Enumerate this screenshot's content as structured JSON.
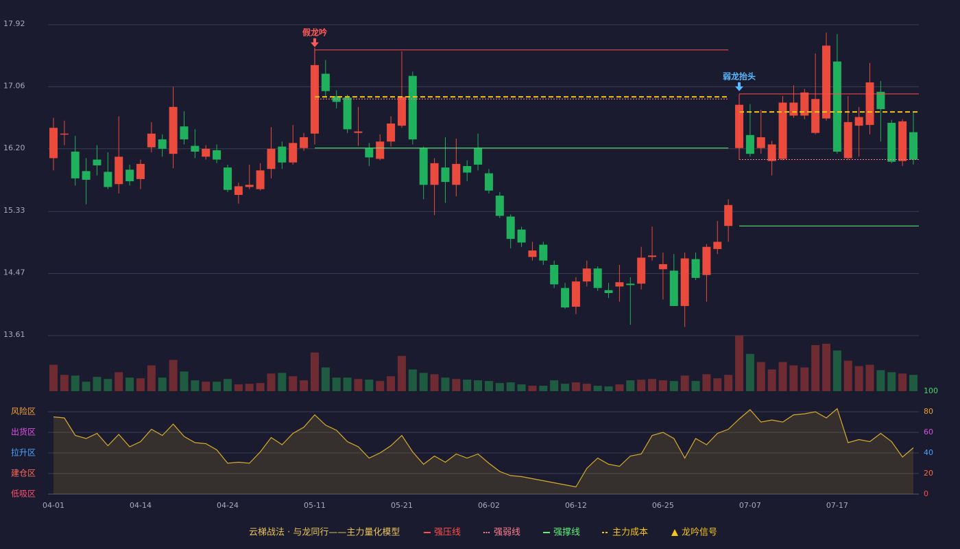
{
  "chart_data": {
    "type": "candlestick",
    "categories": [
      "04-01",
      null,
      null,
      null,
      null,
      null,
      null,
      null,
      "04-14",
      null,
      null,
      null,
      null,
      null,
      null,
      null,
      "04-24",
      null,
      null,
      null,
      null,
      null,
      null,
      null,
      "05-11",
      null,
      null,
      null,
      null,
      null,
      null,
      null,
      "05-21",
      null,
      null,
      null,
      null,
      null,
      null,
      null,
      "06-02",
      null,
      null,
      null,
      null,
      null,
      null,
      null,
      "06-12",
      null,
      null,
      null,
      null,
      null,
      null,
      null,
      "06-25",
      null,
      null,
      null,
      null,
      null,
      null,
      null,
      "07-07",
      null,
      null,
      null,
      null,
      null,
      null,
      null,
      "07-17",
      null,
      null,
      null,
      null,
      null,
      null,
      null
    ],
    "open": [
      16.07,
      16.4,
      16.16,
      15.89,
      16.05,
      15.88,
      15.71,
      15.91,
      15.78,
      16.22,
      16.33,
      16.13,
      16.51,
      16.24,
      16.09,
      16.18,
      15.94,
      15.56,
      15.67,
      15.64,
      15.92,
      16.23,
      16.01,
      16.21,
      16.41,
      17.24,
      16.93,
      16.91,
      16.42,
      16.21,
      16.06,
      16.3,
      16.52,
      17.21,
      16.21,
      15.7,
      15.94,
      15.7,
      15.96,
      16.21,
      15.86,
      15.55,
      15.26,
      15.08,
      14.7,
      14.87,
      14.59,
      14.27,
      14.01,
      14.36,
      14.54,
      14.24,
      14.29,
      14.33,
      14.33,
      14.7,
      14.53,
      14.51,
      14.02,
      14.67,
      14.45,
      14.81,
      15.13,
      16.21,
      16.39,
      16.21,
      16.03,
      16.06,
      16.66,
      16.66,
      16.42,
      16.62,
      17.41,
      16.07,
      16.52,
      16.53,
      16.99,
      16.56,
      16.03,
      16.43
    ],
    "high": [
      16.63,
      16.59,
      16.38,
      16.07,
      16.25,
      16.15,
      16.65,
      15.98,
      16.05,
      16.57,
      16.4,
      17.06,
      16.72,
      16.47,
      16.25,
      16.26,
      15.98,
      15.73,
      15.98,
      16.0,
      16.5,
      16.3,
      16.53,
      16.42,
      17.6,
      17.43,
      17.01,
      16.95,
      16.78,
      16.28,
      16.4,
      16.65,
      17.55,
      17.27,
      16.23,
      16.07,
      16.36,
      16.34,
      16.04,
      16.41,
      15.92,
      15.6,
      15.29,
      15.12,
      14.91,
      14.91,
      14.65,
      14.34,
      14.42,
      14.65,
      14.57,
      14.34,
      14.59,
      14.42,
      14.84,
      15.12,
      14.76,
      14.74,
      14.76,
      14.76,
      14.88,
      15.2,
      15.5,
      16.82,
      16.82,
      16.74,
      16.31,
      16.93,
      17.08,
      17.03,
      17.52,
      17.81,
      17.79,
      16.93,
      16.78,
      17.39,
      17.14,
      16.6,
      16.61,
      16.7
    ],
    "low": [
      15.9,
      16.25,
      15.69,
      15.43,
      15.83,
      15.64,
      15.58,
      15.69,
      15.64,
      16.15,
      16.09,
      15.93,
      16.26,
      16.07,
      16.05,
      16.0,
      15.6,
      15.44,
      15.64,
      15.62,
      15.79,
      15.92,
      15.98,
      16.17,
      16.26,
      16.93,
      16.76,
      16.42,
      16.24,
      15.96,
      16.04,
      16.23,
      16.49,
      16.26,
      15.5,
      15.28,
      15.45,
      15.54,
      15.75,
      15.9,
      15.58,
      15.24,
      14.82,
      14.84,
      14.65,
      14.59,
      14.27,
      13.98,
      13.91,
      14.29,
      14.23,
      14.13,
      14.08,
      13.76,
      14.25,
      14.65,
      14.11,
      14.02,
      13.73,
      14.38,
      14.08,
      14.74,
      14.91,
      16.15,
      16.09,
      16.13,
      15.83,
      16.04,
      16.63,
      16.61,
      16.4,
      16.59,
      16.13,
      16.05,
      16.09,
      16.4,
      16.3,
      16.0,
      15.96,
      15.98
    ],
    "close": [
      16.49,
      16.41,
      15.79,
      15.77,
      15.97,
      15.67,
      16.09,
      15.75,
      15.99,
      16.41,
      16.2,
      16.78,
      16.33,
      16.16,
      16.2,
      16.05,
      15.63,
      15.68,
      15.7,
      15.9,
      16.2,
      16.01,
      16.28,
      16.36,
      17.36,
      17.0,
      16.85,
      16.47,
      16.44,
      16.08,
      16.3,
      16.55,
      16.92,
      16.33,
      15.7,
      16.0,
      15.74,
      15.99,
      15.87,
      15.98,
      15.62,
      15.27,
      14.95,
      14.9,
      14.79,
      14.65,
      14.32,
      14.0,
      14.36,
      14.54,
      14.27,
      14.2,
      14.35,
      14.31,
      14.69,
      14.72,
      14.6,
      14.02,
      14.68,
      14.41,
      14.84,
      14.91,
      15.42,
      16.81,
      16.13,
      16.36,
      16.26,
      16.84,
      16.84,
      16.98,
      16.89,
      17.63,
      16.16,
      16.57,
      16.64,
      17.12,
      16.75,
      16.02,
      16.58,
      16.05
    ],
    "up_color": "#eb4b3d",
    "down_color": "#20b15e",
    "volume_up_color": "#6e2b31",
    "volume_down_color": "#1f5b40",
    "volume": [
      39,
      24,
      23,
      14,
      21,
      18,
      28,
      20,
      19,
      38,
      20,
      46,
      29,
      16,
      14,
      14,
      18,
      10,
      11,
      12,
      26,
      27,
      22,
      16,
      57,
      35,
      20,
      20,
      18,
      17,
      15,
      22,
      52,
      32,
      27,
      25,
      20,
      18,
      17,
      16,
      15,
      12,
      13,
      10,
      8,
      8,
      16,
      11,
      13,
      11,
      8,
      7,
      10,
      16,
      17,
      18,
      16,
      15,
      23,
      15,
      25,
      19,
      24,
      82,
      55,
      43,
      32,
      43,
      38,
      35,
      68,
      70,
      60,
      45,
      37,
      39,
      31,
      28,
      26,
      24
    ],
    "ylim": [
      13.61,
      17.92
    ],
    "yticks": [
      13.61,
      14.47,
      15.33,
      {
        "value": 16.2,
        "label": "16.20"
      },
      17.06,
      17.92
    ],
    "grid": true,
    "levels": [
      {
        "name": "强压线",
        "color": "#ff4d4d",
        "style": "solid",
        "segments": [
          {
            "start": 24,
            "end": 62,
            "value": 17.57
          },
          {
            "start": 63,
            "end": 79,
            "value": 16.96
          }
        ]
      },
      {
        "name": "强弱线",
        "color": "#ff7f8f",
        "style": "dotted",
        "segments": [
          {
            "start": 24,
            "end": 62,
            "value": 16.89
          },
          {
            "start": 63,
            "end": 79,
            "value": 16.05
          }
        ]
      },
      {
        "name": "强撑线",
        "color": "#5ef07a",
        "style": "solid",
        "segments": [
          {
            "start": 24,
            "end": 62,
            "value": 16.21
          },
          {
            "start": 63,
            "end": 79,
            "value": 15.13
          }
        ]
      },
      {
        "name": "主力成本",
        "color": "#f5c518",
        "style": "dashed",
        "segments": [
          {
            "start": 24,
            "end": 62,
            "value": 16.92
          },
          {
            "start": 63,
            "end": 79,
            "value": 16.71
          }
        ]
      }
    ],
    "signals": [
      {
        "label": "假龙吟",
        "index": 24,
        "color": "#ff5a5a"
      },
      {
        "label": "弱龙抬头",
        "index": 63,
        "color": "#5ab8ff"
      }
    ],
    "legend_title": "云梯战法 · 与龙同行——主力量化模型",
    "signal_legend": "龙吟信号",
    "signal_legend_color": "#f5c518",
    "oscillator": {
      "values": [
        75,
        74,
        57,
        54,
        59,
        47,
        58,
        46,
        51,
        63,
        57,
        68,
        56,
        50,
        49,
        43,
        30,
        31,
        30,
        41,
        55,
        48,
        59,
        65,
        77,
        67,
        62,
        51,
        46,
        35,
        40,
        47,
        57,
        41,
        29,
        37,
        31,
        39,
        35,
        39,
        30,
        22,
        18,
        17,
        15,
        13,
        11,
        9,
        7,
        25,
        35,
        29,
        27,
        37,
        39,
        57,
        60,
        54,
        35,
        54,
        48,
        59,
        63,
        73,
        82,
        70,
        72,
        70,
        77,
        78,
        80,
        74,
        83,
        50,
        53,
        51,
        59,
        51,
        36,
        45
      ],
      "color": "#d9ac2a",
      "ylim": [
        0,
        100
      ],
      "yticks": [
        0,
        20,
        40,
        60,
        80,
        100
      ],
      "tick_colors": [
        "#ff4d4d",
        "#ff6a3d",
        "#4aa3ff",
        "#e14ee6",
        "#f0a030",
        "#3ddc6a"
      ],
      "zones": [
        {
          "label": "低吸区",
          "value": 0,
          "color": "#ff4d6d"
        },
        {
          "label": "建仓区",
          "value": 20,
          "color": "#ff6a5a"
        },
        {
          "label": "拉升区",
          "value": 40,
          "color": "#4aa3ff"
        },
        {
          "label": "出货区",
          "value": 60,
          "color": "#e14ee6"
        },
        {
          "label": "风险区",
          "value": 80,
          "color": "#f0a030"
        }
      ]
    }
  }
}
